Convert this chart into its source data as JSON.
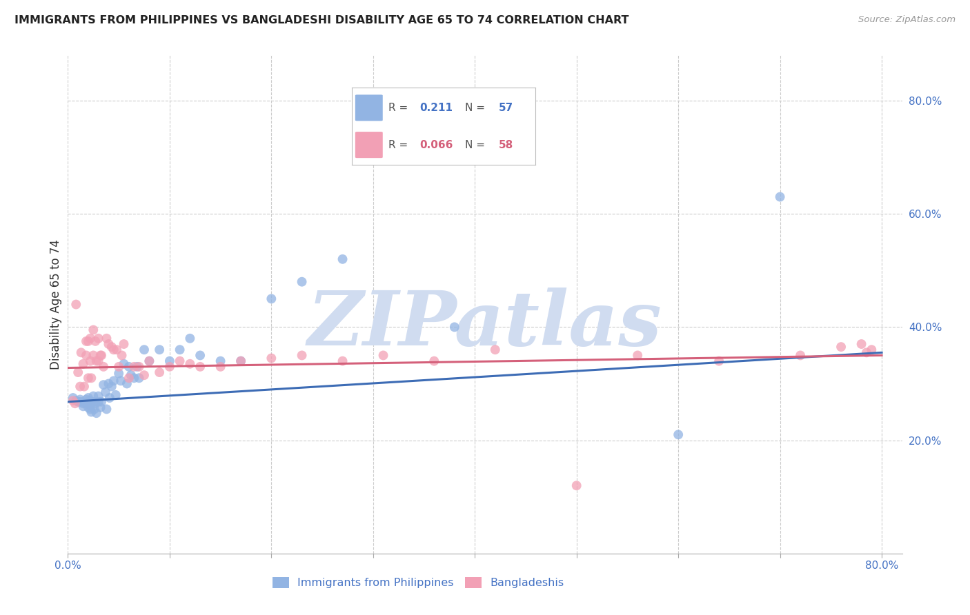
{
  "title": "IMMIGRANTS FROM PHILIPPINES VS BANGLADESHI DISABILITY AGE 65 TO 74 CORRELATION CHART",
  "source": "Source: ZipAtlas.com",
  "ylabel": "Disability Age 65 to 74",
  "xlim": [
    0.0,
    0.82
  ],
  "ylim": [
    0.0,
    0.88
  ],
  "x_ticks": [
    0.0,
    0.1,
    0.2,
    0.3,
    0.4,
    0.5,
    0.6,
    0.7,
    0.8
  ],
  "x_tick_labels": [
    "0.0%",
    "",
    "",
    "",
    "",
    "",
    "",
    "",
    "80.0%"
  ],
  "y_ticks_right": [
    0.2,
    0.4,
    0.6,
    0.8
  ],
  "y_tick_labels_right": [
    "20.0%",
    "40.0%",
    "60.0%",
    "80.0%"
  ],
  "series1_label": "Immigrants from Philippines",
  "series2_label": "Bangladeshis",
  "series1_color": "#92B4E3",
  "series2_color": "#F2A0B5",
  "series1_R": "0.211",
  "series1_N": "57",
  "series2_R": "0.066",
  "series2_N": "58",
  "trend1_color": "#3D6CB5",
  "trend2_color": "#D4607A",
  "watermark": "ZIPatlas",
  "watermark_color": "#D0DCF0",
  "background_color": "#FFFFFF",
  "grid_color": "#CCCCCC",
  "axis_label_color": "#4472C4",
  "title_color": "#222222",
  "legend_border_color": "#BBBBBB",
  "series1_x": [
    0.005,
    0.008,
    0.01,
    0.012,
    0.013,
    0.015,
    0.015,
    0.018,
    0.018,
    0.02,
    0.02,
    0.021,
    0.022,
    0.022,
    0.023,
    0.023,
    0.025,
    0.025,
    0.026,
    0.027,
    0.028,
    0.03,
    0.03,
    0.032,
    0.033,
    0.035,
    0.037,
    0.038,
    0.04,
    0.041,
    0.043,
    0.045,
    0.047,
    0.05,
    0.052,
    0.055,
    0.058,
    0.06,
    0.062,
    0.065,
    0.068,
    0.07,
    0.075,
    0.08,
    0.09,
    0.1,
    0.11,
    0.12,
    0.13,
    0.15,
    0.17,
    0.2,
    0.23,
    0.27,
    0.38,
    0.6,
    0.7
  ],
  "series1_y": [
    0.275,
    0.27,
    0.268,
    0.272,
    0.268,
    0.265,
    0.26,
    0.272,
    0.265,
    0.275,
    0.258,
    0.27,
    0.262,
    0.255,
    0.268,
    0.25,
    0.278,
    0.268,
    0.255,
    0.265,
    0.248,
    0.278,
    0.268,
    0.258,
    0.268,
    0.298,
    0.285,
    0.255,
    0.3,
    0.275,
    0.295,
    0.305,
    0.28,
    0.318,
    0.305,
    0.335,
    0.3,
    0.33,
    0.315,
    0.31,
    0.33,
    0.31,
    0.36,
    0.34,
    0.36,
    0.34,
    0.36,
    0.38,
    0.35,
    0.34,
    0.34,
    0.45,
    0.48,
    0.52,
    0.4,
    0.21,
    0.63
  ],
  "series2_x": [
    0.005,
    0.007,
    0.008,
    0.01,
    0.012,
    0.013,
    0.015,
    0.016,
    0.018,
    0.018,
    0.02,
    0.02,
    0.022,
    0.022,
    0.023,
    0.025,
    0.025,
    0.027,
    0.028,
    0.03,
    0.03,
    0.032,
    0.033,
    0.035,
    0.038,
    0.04,
    0.043,
    0.045,
    0.048,
    0.05,
    0.053,
    0.055,
    0.06,
    0.065,
    0.07,
    0.075,
    0.08,
    0.09,
    0.1,
    0.11,
    0.12,
    0.13,
    0.15,
    0.17,
    0.2,
    0.23,
    0.27,
    0.31,
    0.36,
    0.42,
    0.5,
    0.56,
    0.64,
    0.72,
    0.76,
    0.78,
    0.785,
    0.79
  ],
  "series2_y": [
    0.27,
    0.265,
    0.44,
    0.32,
    0.295,
    0.355,
    0.335,
    0.295,
    0.375,
    0.35,
    0.375,
    0.31,
    0.38,
    0.34,
    0.31,
    0.395,
    0.35,
    0.375,
    0.34,
    0.38,
    0.34,
    0.35,
    0.35,
    0.33,
    0.38,
    0.37,
    0.365,
    0.36,
    0.36,
    0.33,
    0.35,
    0.37,
    0.31,
    0.33,
    0.33,
    0.315,
    0.34,
    0.32,
    0.33,
    0.34,
    0.335,
    0.33,
    0.33,
    0.34,
    0.345,
    0.35,
    0.34,
    0.35,
    0.34,
    0.36,
    0.12,
    0.35,
    0.34,
    0.35,
    0.365,
    0.37,
    0.355,
    0.36
  ],
  "trend1_start_y": 0.268,
  "trend1_end_y": 0.355,
  "trend2_start_y": 0.328,
  "trend2_end_y": 0.35
}
